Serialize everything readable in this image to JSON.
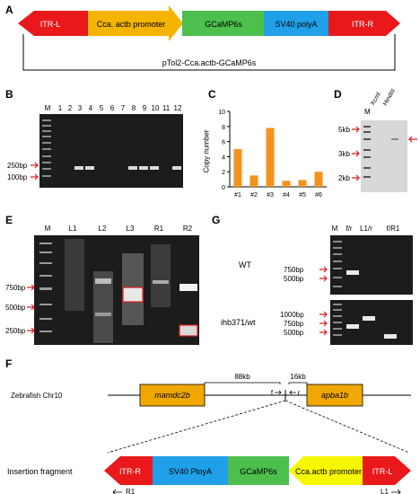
{
  "panels": {
    "A": "A",
    "B": "B",
    "C": "C",
    "D": "D",
    "E": "E",
    "F": "F",
    "G": "G"
  },
  "construct": {
    "segments": [
      "ITR-L",
      "Cca. actb promoter",
      "GCaMP6s",
      "SV40 polyA",
      "ITR-R"
    ],
    "plasmid_name": "pTol2-Cca.actb-GCaMP6s"
  },
  "gel_b": {
    "lanes": [
      "M",
      "1",
      "2",
      "3",
      "4",
      "5",
      "6",
      "7",
      "8",
      "9",
      "10",
      "11",
      "12"
    ],
    "markers": [
      "250bp",
      "100bp"
    ]
  },
  "chart_data": {
    "type": "bar",
    "categories": [
      "#1",
      "#2",
      "#3",
      "#4",
      "#5",
      "#6"
    ],
    "values": [
      5.0,
      1.5,
      7.8,
      0.8,
      0.9,
      2.0
    ],
    "title": "",
    "ylabel": "Copy number",
    "xlabel": "",
    "ylim": [
      0,
      10
    ],
    "yticks": [
      0,
      2,
      4,
      6,
      8,
      10
    ],
    "bar_color": "#f5921e"
  },
  "gel_d": {
    "lanes": [
      "M",
      "Xcml",
      "HindIII"
    ],
    "markers": [
      "5kb",
      "3kb",
      "2kb"
    ]
  },
  "gel_e": {
    "lanes": [
      "M",
      "L1",
      "L2",
      "L3",
      "R1",
      "R2"
    ],
    "markers": [
      "750bp",
      "500bp",
      "250bp"
    ]
  },
  "gel_g": {
    "lanes": [
      "M",
      "f/r",
      "L1/r",
      "f/R1"
    ],
    "row1_label": "WT",
    "row1_markers": [
      "750bp",
      "500bp"
    ],
    "row2_label": "ihb371/wt",
    "row2_markers": [
      "1000bp",
      "750bp",
      "500bp"
    ]
  },
  "map_f": {
    "chromosome": "Zebrafish Chr10",
    "gene_left": "mamdc2b",
    "gene_right": "apba1b",
    "dist_left": "88kb",
    "dist_right": "16kb",
    "primer_f": "f",
    "primer_r": "r",
    "insertion_label": "Insertion fragment",
    "insert_segments": [
      "ITR-R",
      "SV40 PloyA",
      "GCaMP6s",
      "Cca.actb promoter",
      "ITR-L"
    ],
    "primer_r1": "R1",
    "primer_l1": "L1"
  },
  "colors": {
    "itr": "#e8181b",
    "promoter_a": "#f5b400",
    "promoter_f": "#f7f700",
    "gcamp": "#4dbf4d",
    "sv40": "#1fa0e8",
    "gene": "#f0a800",
    "bar": "#f5921e",
    "arrow_red": "#e0191b"
  }
}
